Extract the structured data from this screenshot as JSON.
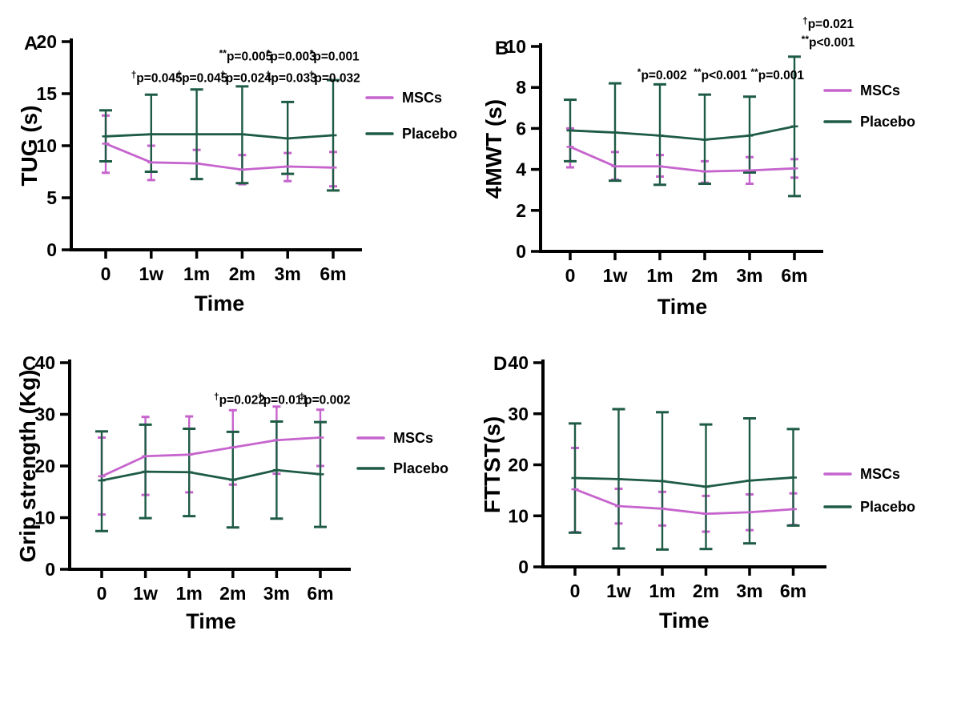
{
  "figure": {
    "background": "#ffffff",
    "axis_color": "#000000",
    "text_color": "#000000"
  },
  "colors": {
    "mscs": "#c664cd",
    "placebo": "#1e5b45"
  },
  "legend": {
    "entries": [
      "MSCs",
      "Placebo"
    ],
    "position": "right"
  },
  "chart_data": [
    {
      "id": "A",
      "letter": "A",
      "type": "line",
      "title": "",
      "ylabel": "TUG (s)",
      "xlabel": "Time",
      "categories": [
        "0",
        "1w",
        "1m",
        "2m",
        "3m",
        "6m"
      ],
      "ylim": [
        0,
        20
      ],
      "yticks": [
        0,
        5,
        10,
        15,
        20
      ],
      "grid": false,
      "series": [
        {
          "name": "MSCs",
          "color": "#c664cd",
          "values": [
            10.2,
            8.4,
            8.3,
            7.7,
            8.0,
            7.9
          ],
          "err_lo": [
            7.4,
            6.7,
            6.8,
            6.3,
            6.6,
            6.1
          ],
          "err_hi": [
            12.9,
            10.0,
            9.6,
            9.1,
            9.3,
            9.4
          ]
        },
        {
          "name": "Placebo",
          "color": "#1e5b45",
          "values": [
            10.9,
            11.1,
            11.1,
            11.1,
            10.7,
            11.0
          ],
          "err_lo": [
            8.5,
            7.5,
            6.8,
            6.4,
            7.3,
            5.7
          ],
          "err_hi": [
            13.4,
            14.9,
            15.4,
            15.7,
            14.2,
            16.3
          ]
        }
      ],
      "annotations": [
        {
          "text": "**p=0.005",
          "x": 3.08,
          "y": 18.2
        },
        {
          "text": "*p=0.003",
          "x": 4.08,
          "y": 18.2
        },
        {
          "text": "*p=0.001",
          "x": 5.03,
          "y": 18.2
        },
        {
          "text": "†p=0.045",
          "x": 1.12,
          "y": 16.1
        },
        {
          "text": "†p=0.045",
          "x": 2.12,
          "y": 16.1
        },
        {
          "text": "†p=0.024",
          "x": 3.08,
          "y": 16.1
        },
        {
          "text": "†p=0.033",
          "x": 4.08,
          "y": 16.1
        },
        {
          "text": "†p=0.032",
          "x": 5.03,
          "y": 16.1
        }
      ]
    },
    {
      "id": "B",
      "letter": "B",
      "type": "line",
      "title": "",
      "ylabel": "4MWT (s)",
      "xlabel": "Time",
      "categories": [
        "0",
        "1w",
        "1m",
        "2m",
        "3m",
        "6m"
      ],
      "ylim": [
        0,
        10
      ],
      "yticks": [
        0,
        2,
        4,
        6,
        8,
        10
      ],
      "grid": false,
      "series": [
        {
          "name": "MSCs",
          "color": "#c664cd",
          "values": [
            5.1,
            4.15,
            4.15,
            3.9,
            3.95,
            4.05
          ],
          "err_lo": [
            4.1,
            3.5,
            3.65,
            3.35,
            3.3,
            3.6
          ],
          "err_hi": [
            6.0,
            4.85,
            4.7,
            4.4,
            4.6,
            4.5
          ]
        },
        {
          "name": "Placebo",
          "color": "#1e5b45",
          "values": [
            5.9,
            5.8,
            5.65,
            5.45,
            5.65,
            6.1
          ],
          "err_lo": [
            4.4,
            3.45,
            3.25,
            3.3,
            3.85,
            2.7
          ],
          "err_hi": [
            7.4,
            8.2,
            8.15,
            7.65,
            7.55,
            9.5
          ]
        }
      ],
      "annotations": [
        {
          "text": "*p=0.002",
          "x": 2.05,
          "y": 8.4
        },
        {
          "text": "**p<0.001",
          "x": 3.35,
          "y": 8.4
        },
        {
          "text": "**p=0.001",
          "x": 4.62,
          "y": 8.4
        },
        {
          "text": "†p=0.021",
          "x": 5.75,
          "y": 10.9
        },
        {
          "text": "**p<0.001",
          "x": 5.75,
          "y": 10.0
        }
      ]
    },
    {
      "id": "C",
      "letter": "C",
      "type": "line",
      "title": "",
      "ylabel": "Grip strength (Kg)",
      "xlabel": "Time",
      "categories": [
        "0",
        "1w",
        "1m",
        "2m",
        "3m",
        "6m"
      ],
      "ylim": [
        0,
        40
      ],
      "yticks": [
        0,
        10,
        20,
        30,
        40
      ],
      "grid": false,
      "series": [
        {
          "name": "MSCs",
          "color": "#c664cd",
          "values": [
            18.0,
            21.9,
            22.2,
            23.6,
            25.0,
            25.5
          ],
          "err_lo": [
            10.6,
            14.4,
            14.9,
            16.4,
            18.5,
            20.0
          ],
          "err_hi": [
            25.5,
            29.5,
            29.6,
            30.8,
            31.5,
            30.9
          ]
        },
        {
          "name": "Placebo",
          "color": "#1e5b45",
          "values": [
            17.2,
            18.9,
            18.8,
            17.3,
            19.2,
            18.4
          ],
          "err_lo": [
            7.4,
            9.9,
            10.3,
            8.1,
            9.8,
            8.2
          ],
          "err_hi": [
            26.7,
            28.0,
            27.2,
            26.6,
            28.6,
            28.5
          ]
        }
      ],
      "annotations": [
        {
          "text": "†p=0.022",
          "x": 3.15,
          "y": 32
        },
        {
          "text": "†p=0.011",
          "x": 4.15,
          "y": 32
        },
        {
          "text": "‡p=0.002",
          "x": 5.1,
          "y": 32
        }
      ]
    },
    {
      "id": "D",
      "letter": "D",
      "type": "line",
      "title": "",
      "ylabel": "FTTST(s)",
      "xlabel": "Time",
      "categories": [
        "0",
        "1w",
        "1m",
        "2m",
        "3m",
        "6m"
      ],
      "ylim": [
        0,
        40
      ],
      "yticks": [
        0,
        10,
        20,
        30,
        40
      ],
      "grid": false,
      "series": [
        {
          "name": "MSCs",
          "color": "#c664cd",
          "values": [
            15.2,
            11.9,
            11.4,
            10.4,
            10.7,
            11.3
          ],
          "err_lo": [
            6.8,
            8.5,
            8.1,
            6.9,
            7.2,
            8.2
          ],
          "err_hi": [
            23.3,
            15.3,
            14.7,
            13.9,
            14.2,
            14.4
          ]
        },
        {
          "name": "Placebo",
          "color": "#1e5b45",
          "values": [
            17.4,
            17.2,
            16.8,
            15.7,
            16.9,
            17.5
          ],
          "err_lo": [
            6.7,
            3.6,
            3.4,
            3.5,
            4.6,
            8.1
          ],
          "err_hi": [
            28.1,
            30.9,
            30.3,
            27.9,
            29.1,
            27.0
          ]
        }
      ],
      "annotations": []
    }
  ]
}
